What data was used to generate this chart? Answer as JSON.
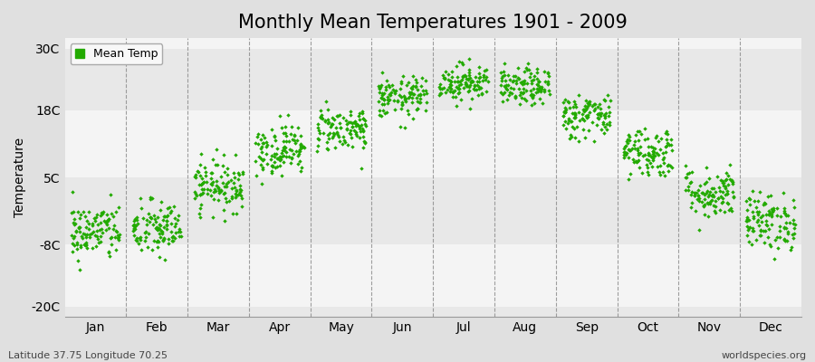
{
  "title": "Monthly Mean Temperatures 1901 - 2009",
  "ylabel": "Temperature",
  "subtitle_left": "Latitude 37.75 Longitude 70.25",
  "subtitle_right": "worldspecies.org",
  "months": [
    "Jan",
    "Feb",
    "Mar",
    "Apr",
    "May",
    "Jun",
    "Jul",
    "Aug",
    "Sep",
    "Oct",
    "Nov",
    "Dec"
  ],
  "monthly_means": [
    -5.5,
    -5.0,
    3.5,
    10.5,
    14.5,
    20.5,
    23.5,
    22.5,
    17.0,
    10.0,
    2.0,
    -3.5
  ],
  "monthly_stds": [
    2.8,
    2.8,
    2.5,
    2.5,
    2.2,
    2.0,
    1.8,
    1.8,
    2.2,
    2.5,
    2.5,
    2.8
  ],
  "n_years": 109,
  "yticks": [
    -20,
    -8,
    5,
    18,
    30
  ],
  "ytick_labels": [
    "-20C",
    "-8C",
    "5C",
    "18C",
    "30C"
  ],
  "ylim": [
    -22,
    32
  ],
  "marker_color": "#22aa00",
  "bg_color": "#e0e0e0",
  "band_colors": [
    "#e8e8e8",
    "#f4f4f4"
  ],
  "legend_label": "Mean Temp",
  "dashed_line_color": "#888888",
  "title_fontsize": 15,
  "axis_fontsize": 10,
  "tick_fontsize": 10,
  "seed": 42
}
